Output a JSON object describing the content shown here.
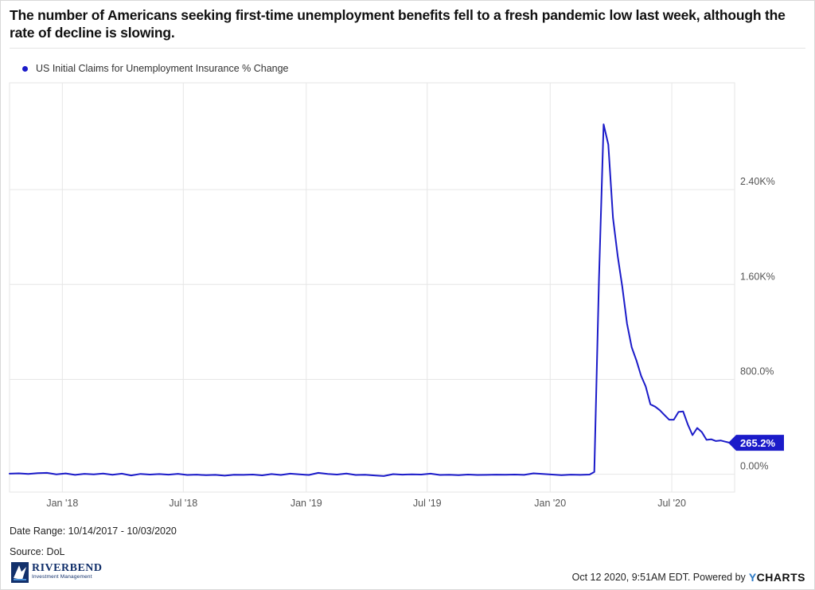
{
  "title": "The number of Americans seeking first-time unemployment benefits fell to a fresh pandemic low last week, although the rate of decline is slowing.",
  "footer": {
    "date_range": "Date Range: 10/14/2017 - 10/03/2020",
    "source": "Source: DoL",
    "timestamp": "Oct 12 2020, 9:51AM EDT. Powered by",
    "ycharts_y": "Y",
    "ycharts_rest": "CHARTS"
  },
  "logo": {
    "name": "RIVERBEND",
    "subtitle": "Investment Management"
  },
  "colors": {
    "series": "#1b1bc9",
    "grid": "#e6e6e6",
    "axis_text": "#555555"
  },
  "chart_data": {
    "type": "line",
    "series": [
      {
        "name": "US Initial Claims for Unemployment Insurance % Change",
        "end_label": "265.2%",
        "points": [
          [
            "2017-10-14",
            5
          ],
          [
            "2017-10-28",
            8
          ],
          [
            "2017-11-11",
            3
          ],
          [
            "2017-11-25",
            9
          ],
          [
            "2017-12-09",
            12
          ],
          [
            "2017-12-23",
            0
          ],
          [
            "2018-01-06",
            7
          ],
          [
            "2018-01-20",
            -5
          ],
          [
            "2018-02-03",
            4
          ],
          [
            "2018-02-17",
            0
          ],
          [
            "2018-03-03",
            6
          ],
          [
            "2018-03-17",
            -4
          ],
          [
            "2018-03-31",
            5
          ],
          [
            "2018-04-14",
            -10
          ],
          [
            "2018-04-28",
            3
          ],
          [
            "2018-05-12",
            -2
          ],
          [
            "2018-05-26",
            2
          ],
          [
            "2018-06-09",
            -3
          ],
          [
            "2018-06-23",
            4
          ],
          [
            "2018-07-07",
            -6
          ],
          [
            "2018-07-21",
            -3
          ],
          [
            "2018-08-04",
            -8
          ],
          [
            "2018-08-18",
            -5
          ],
          [
            "2018-09-01",
            -12
          ],
          [
            "2018-09-15",
            -4
          ],
          [
            "2018-09-29",
            -5
          ],
          [
            "2018-10-13",
            -2
          ],
          [
            "2018-10-27",
            -9
          ],
          [
            "2018-11-10",
            2
          ],
          [
            "2018-11-24",
            -6
          ],
          [
            "2018-12-08",
            5
          ],
          [
            "2018-12-22",
            -1
          ],
          [
            "2019-01-05",
            -6
          ],
          [
            "2019-01-19",
            12
          ],
          [
            "2019-02-02",
            3
          ],
          [
            "2019-02-16",
            -2
          ],
          [
            "2019-03-02",
            6
          ],
          [
            "2019-03-16",
            -6
          ],
          [
            "2019-03-30",
            -4
          ],
          [
            "2019-04-13",
            -10
          ],
          [
            "2019-04-27",
            -15
          ],
          [
            "2019-05-11",
            1
          ],
          [
            "2019-05-25",
            -3
          ],
          [
            "2019-06-08",
            0
          ],
          [
            "2019-06-22",
            -2
          ],
          [
            "2019-07-06",
            5
          ],
          [
            "2019-07-20",
            -6
          ],
          [
            "2019-08-03",
            -4
          ],
          [
            "2019-08-17",
            -8
          ],
          [
            "2019-08-31",
            -2
          ],
          [
            "2019-09-14",
            -6
          ],
          [
            "2019-09-28",
            -5
          ],
          [
            "2019-10-12",
            -3
          ],
          [
            "2019-10-26",
            -4
          ],
          [
            "2019-11-09",
            -2
          ],
          [
            "2019-11-23",
            -5
          ],
          [
            "2019-12-07",
            8
          ],
          [
            "2019-12-21",
            3
          ],
          [
            "2020-01-04",
            -2
          ],
          [
            "2020-01-18",
            -8
          ],
          [
            "2020-02-01",
            -3
          ],
          [
            "2020-02-15",
            -5
          ],
          [
            "2020-02-29",
            -2
          ],
          [
            "2020-03-07",
            20
          ],
          [
            "2020-03-14",
            1650
          ],
          [
            "2020-03-21",
            2950
          ],
          [
            "2020-03-28",
            2780
          ],
          [
            "2020-04-04",
            2160
          ],
          [
            "2020-04-11",
            1840
          ],
          [
            "2020-04-18",
            1580
          ],
          [
            "2020-04-25",
            1270
          ],
          [
            "2020-05-02",
            1070
          ],
          [
            "2020-05-09",
            960
          ],
          [
            "2020-05-16",
            830
          ],
          [
            "2020-05-23",
            740
          ],
          [
            "2020-05-30",
            590
          ],
          [
            "2020-06-06",
            570
          ],
          [
            "2020-06-13",
            540
          ],
          [
            "2020-06-20",
            500
          ],
          [
            "2020-06-27",
            460
          ],
          [
            "2020-07-04",
            460
          ],
          [
            "2020-07-11",
            525
          ],
          [
            "2020-07-18",
            530
          ],
          [
            "2020-07-25",
            420
          ],
          [
            "2020-08-01",
            330
          ],
          [
            "2020-08-08",
            390
          ],
          [
            "2020-08-15",
            355
          ],
          [
            "2020-08-22",
            290
          ],
          [
            "2020-08-29",
            295
          ],
          [
            "2020-09-05",
            280
          ],
          [
            "2020-09-12",
            285
          ],
          [
            "2020-09-19",
            275
          ],
          [
            "2020-09-26",
            265.2
          ],
          [
            "2020-10-03",
            265.2
          ]
        ]
      }
    ],
    "x_ticks": [
      {
        "date": "2018-01-01",
        "label": "Jan '18"
      },
      {
        "date": "2018-07-01",
        "label": "Jul '18"
      },
      {
        "date": "2019-01-01",
        "label": "Jan '19"
      },
      {
        "date": "2019-07-01",
        "label": "Jul '19"
      },
      {
        "date": "2020-01-01",
        "label": "Jan '20"
      },
      {
        "date": "2020-07-01",
        "label": "Jul '20"
      }
    ],
    "y_ticks": [
      {
        "value": 0,
        "label": "0.00%"
      },
      {
        "value": 800,
        "label": "800.0%"
      },
      {
        "value": 1600,
        "label": "1.60K%"
      },
      {
        "value": 2400,
        "label": "2.40K%"
      }
    ],
    "xlim": [
      "2017-10-14",
      "2020-10-03"
    ],
    "ylim": [
      -150,
      3300
    ],
    "grid": true,
    "y_axis_position": "right",
    "legend_position": "top-left"
  }
}
